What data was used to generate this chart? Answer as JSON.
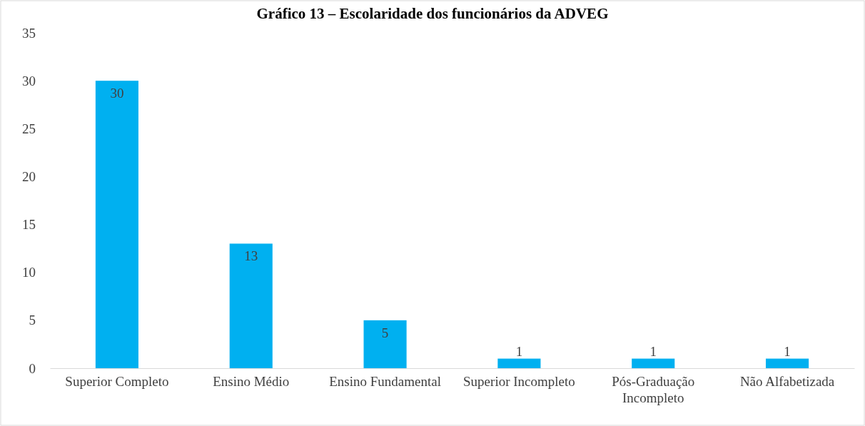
{
  "chart_data": {
    "type": "bar",
    "title": "Gráfico 13 – Escolaridade dos funcionários da ADVEG",
    "categories": [
      "Superior Completo",
      "Ensino Médio",
      "Ensino Fundamental",
      "Superior Incompleto",
      "Pós-Graduação Incompleto",
      "Não Alfabetizada"
    ],
    "values": [
      30,
      13,
      5,
      1,
      1,
      1
    ],
    "color": "#00b0f0",
    "ylim": [
      0,
      35
    ],
    "yticks": [
      0,
      5,
      10,
      15,
      20,
      25,
      30,
      35
    ],
    "grid": false,
    "data_labels": true
  }
}
